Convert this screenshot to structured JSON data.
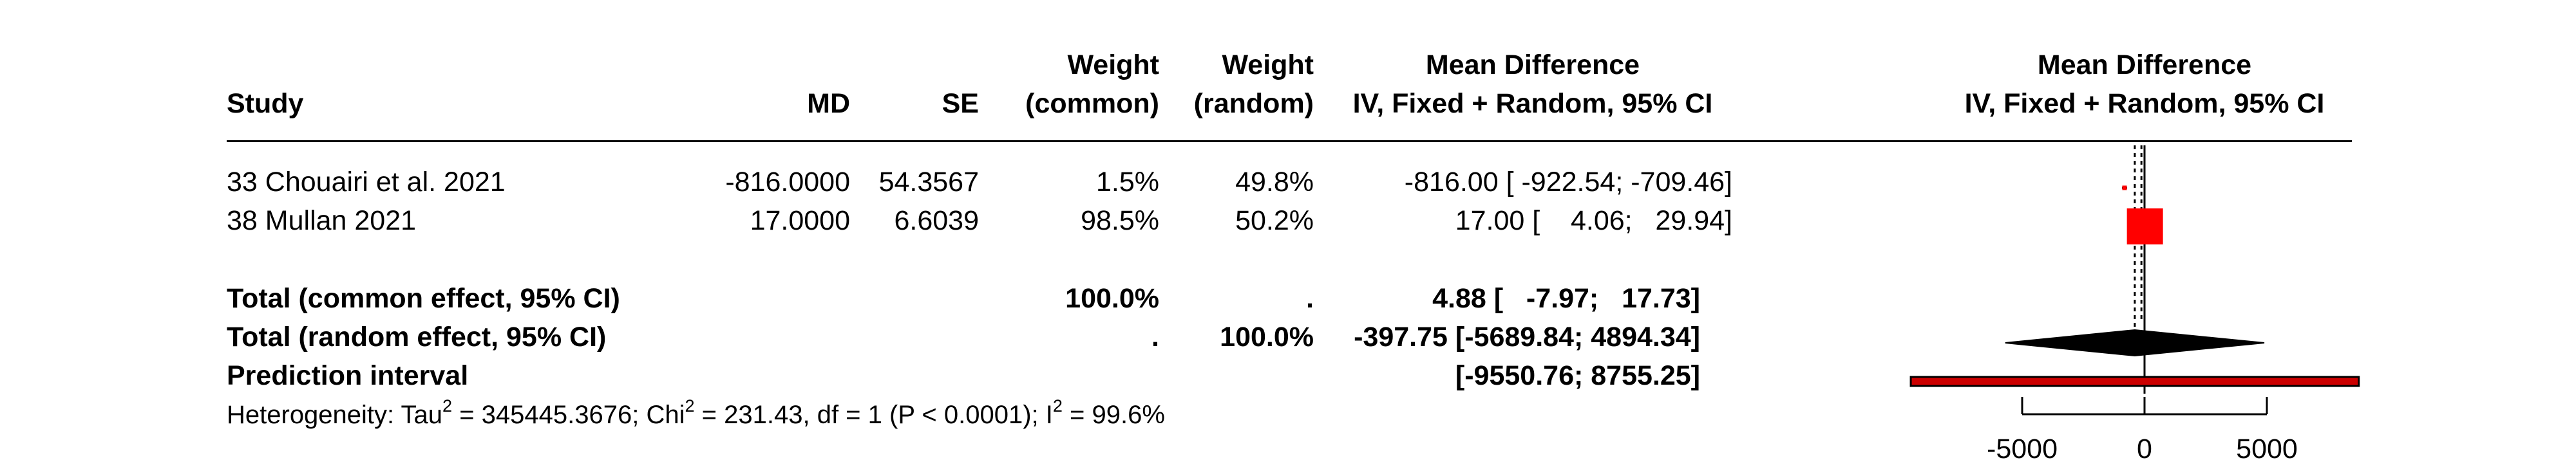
{
  "headers": {
    "study": "Study",
    "md": "MD",
    "se": "SE",
    "weight_common_1": "Weight",
    "weight_common_2": "(common)",
    "weight_random_1": "Weight",
    "weight_random_2": "(random)",
    "md_col_1": "Mean Difference",
    "md_col_2": "IV, Fixed + Random, 95% CI",
    "plot_col_1": "Mean Difference",
    "plot_col_2": "IV, Fixed + Random, 95% CI"
  },
  "rows": [
    {
      "study": "33 Chouairi et al. 2021",
      "md": "-816.0000",
      "se": "54.3567",
      "w_common": "1.5%",
      "w_random": "49.8%",
      "ci_text": "-816.00 [ -922.54; -709.46]"
    },
    {
      "study": "38 Mullan 2021",
      "md": "17.0000",
      "se": "6.6039",
      "w_common": "98.5%",
      "w_random": "50.2%",
      "ci_text": "17.00 [    4.06;   29.94]"
    }
  ],
  "totals": {
    "common_label": "Total (common effect, 95% CI)",
    "common_w_common": "100.0%",
    "common_w_random": ".",
    "common_ci": "4.88 [   -7.97;   17.73]",
    "random_label": "Total (random effect, 95% CI)",
    "random_w_common": ".",
    "random_w_random": "100.0%",
    "random_ci": "-397.75 [-5689.84; 4894.34]",
    "prediction_label": "Prediction interval",
    "prediction_ci": "[-9550.76; 8755.25]"
  },
  "heterogeneity": {
    "prefix": "Heterogeneity: Tau",
    "tau2": "345445.3676",
    "chi2_label": "; Chi",
    "chi2": "231.43",
    "df_p": ", df = 1 (P < 0.0001); I",
    "i2": "99.6%"
  },
  "chart_data": {
    "type": "forest",
    "xlim": [
      -9550.76,
      8755.25
    ],
    "ticks": [
      -5000,
      0,
      5000
    ],
    "tick_labels": [
      "-5000",
      "0",
      "5000"
    ],
    "studies": [
      {
        "name": "33 Chouairi et al. 2021",
        "estimate": -816.0,
        "lower": -922.54,
        "upper": -709.46,
        "weight_common": 1.5
      },
      {
        "name": "38 Mullan 2021",
        "estimate": 17.0,
        "lower": 4.06,
        "upper": 29.94,
        "weight_common": 98.5
      }
    ],
    "common_effect": {
      "estimate": 4.88,
      "lower": -7.97,
      "upper": 17.73
    },
    "random_effect": {
      "estimate": -397.75,
      "lower": -5689.84,
      "upper": 4894.34
    },
    "prediction_interval": {
      "lower": -9550.76,
      "upper": 8755.25
    },
    "colors": {
      "square": "#ff0000",
      "diamond": "#000000",
      "prediction": "#cc0000"
    }
  }
}
